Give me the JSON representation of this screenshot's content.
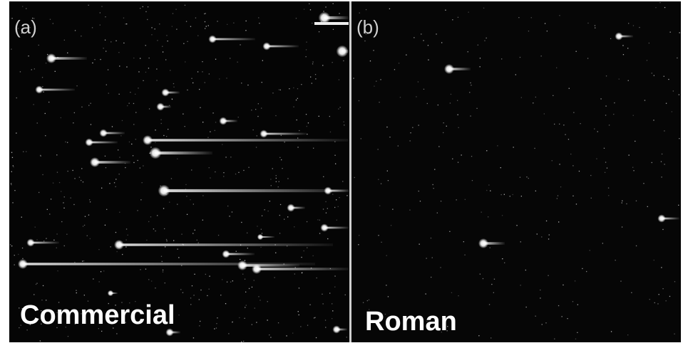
{
  "panels": [
    {
      "tag": "(a)",
      "label": "Commercial"
    },
    {
      "tag": "(b)",
      "label": "Roman"
    }
  ]
}
